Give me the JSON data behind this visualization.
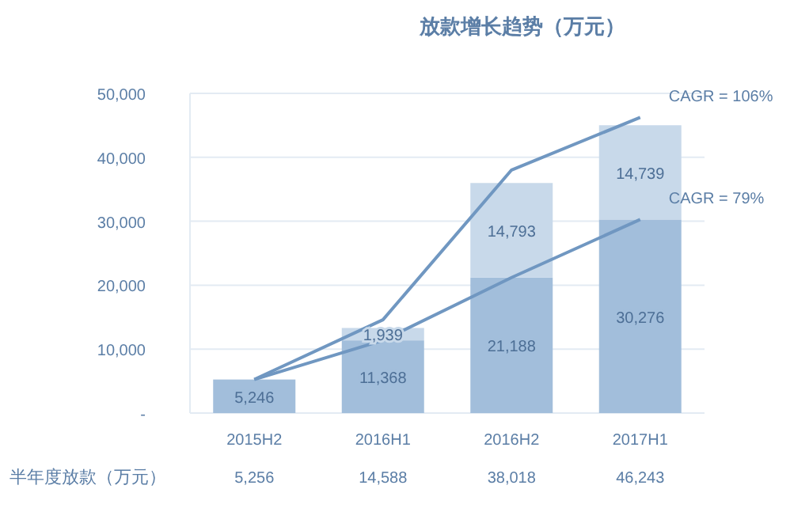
{
  "chart_data": {
    "type": "bar",
    "title": "放款增长趋势（万元）",
    "categories": [
      "2015H2",
      "2016H1",
      "2016H2",
      "2017H1"
    ],
    "stacked": true,
    "ylim": [
      0,
      50000
    ],
    "yticks": [
      {
        "value": 0,
        "label": "-"
      },
      {
        "value": 10000,
        "label": "10,000"
      },
      {
        "value": 20000,
        "label": "20,000"
      },
      {
        "value": 30000,
        "label": "30,000"
      },
      {
        "value": 40000,
        "label": "40,000"
      },
      {
        "value": 50000,
        "label": "50,000"
      }
    ],
    "grid": "y",
    "series": [
      {
        "color": "#a2bedb",
        "values": [
          5246,
          11368,
          21188,
          30276
        ],
        "value_labels": [
          "5,246",
          "11,368",
          "21,188",
          "30,276"
        ]
      },
      {
        "color": "#c8d9ea",
        "values": [
          null,
          1939,
          14793,
          14739
        ],
        "value_labels": [
          null,
          "1,939",
          "14,793",
          "14,739"
        ]
      },
      {
        "type": "line",
        "name": "半年度放款（万元）",
        "color": "#7097c1",
        "values": [
          5256,
          14588,
          38018,
          46243
        ],
        "value_labels": [
          "5,256",
          "14,588",
          "38,018",
          "46,243"
        ]
      },
      {
        "type": "line",
        "color": "#7097c1",
        "values": [
          5246,
          11368,
          21188,
          30276
        ]
      }
    ],
    "annotations": [
      {
        "text": "CAGR = 106%",
        "x": "2017H1",
        "y": 46243
      },
      {
        "text": "CAGR = 79%",
        "x": "2017H1",
        "y": 30276
      }
    ]
  }
}
